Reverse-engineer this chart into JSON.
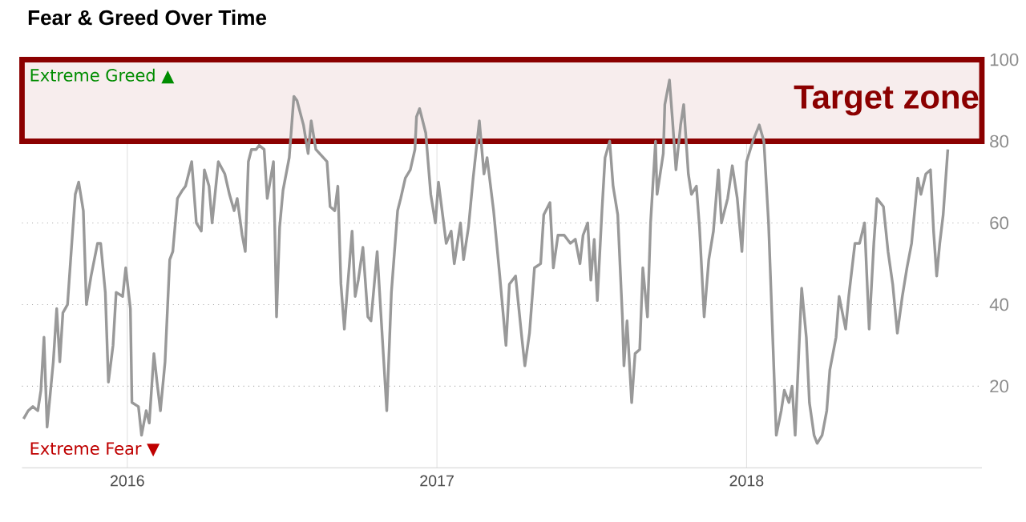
{
  "chart_data": {
    "type": "line",
    "title": "Fear & Greed Over Time",
    "color": "#999999",
    "marker": "none",
    "grid": true,
    "x": [
      2015.665,
      2015.68,
      2015.695,
      2015.711,
      2015.721,
      2015.731,
      2015.741,
      2015.761,
      2015.772,
      2015.782,
      2015.792,
      2015.807,
      2015.817,
      2015.832,
      2015.843,
      2015.858,
      2015.868,
      2015.883,
      2015.904,
      2015.914,
      2015.929,
      2015.939,
      2015.954,
      2015.964,
      2015.985,
      2015.995,
      2016.01,
      2016.015,
      2016.036,
      2016.046,
      2016.061,
      2016.071,
      2016.086,
      2016.096,
      2016.107,
      2016.122,
      2016.137,
      2016.147,
      2016.162,
      2016.178,
      2016.188,
      2016.208,
      2016.223,
      2016.239,
      2016.249,
      2016.264,
      2016.274,
      2016.294,
      2016.315,
      2016.33,
      2016.345,
      2016.355,
      2016.371,
      2016.381,
      2016.391,
      2016.401,
      2016.416,
      2016.426,
      2016.442,
      2016.452,
      2016.472,
      2016.482,
      2016.492,
      2016.503,
      2016.523,
      2016.538,
      2016.548,
      2016.569,
      2016.584,
      2016.594,
      2016.609,
      2016.645,
      2016.655,
      2016.67,
      2016.68,
      2016.69,
      2016.701,
      2016.711,
      2016.726,
      2016.736,
      2016.746,
      2016.761,
      2016.777,
      2016.787,
      2016.807,
      2016.822,
      2016.838,
      2016.853,
      2016.873,
      2016.883,
      2016.898,
      2016.914,
      2016.929,
      2016.934,
      2016.944,
      2016.964,
      2016.98,
      2016.995,
      2017.005,
      2017.03,
      2017.046,
      2017.056,
      2017.076,
      2017.086,
      2017.102,
      2017.117,
      2017.137,
      2017.152,
      2017.162,
      2017.183,
      2017.203,
      2017.223,
      2017.234,
      2017.254,
      2017.274,
      2017.284,
      2017.299,
      2017.315,
      2017.335,
      2017.345,
      2017.365,
      2017.376,
      2017.391,
      2017.411,
      2017.431,
      2017.447,
      2017.462,
      2017.472,
      2017.487,
      2017.497,
      2017.508,
      2017.518,
      2017.533,
      2017.543,
      2017.558,
      2017.569,
      2017.584,
      2017.599,
      2017.604,
      2017.614,
      2017.629,
      2017.64,
      2017.655,
      2017.665,
      2017.68,
      2017.69,
      2017.706,
      2017.711,
      2017.731,
      2017.736,
      2017.751,
      2017.761,
      2017.772,
      2017.787,
      2017.797,
      2017.812,
      2017.822,
      2017.838,
      2017.848,
      2017.863,
      2017.878,
      2017.893,
      2017.909,
      2017.919,
      2017.939,
      2017.954,
      2017.97,
      2017.985,
      2018.0,
      2018.02,
      2018.041,
      2018.056,
      2018.071,
      2018.096,
      2018.112,
      2018.122,
      2018.137,
      2018.147,
      2018.157,
      2018.168,
      2018.178,
      2018.193,
      2018.203,
      2018.218,
      2018.228,
      2018.244,
      2018.259,
      2018.269,
      2018.289,
      2018.299,
      2018.32,
      2018.33,
      2018.35,
      2018.365,
      2018.381,
      2018.396,
      2018.411,
      2018.421,
      2018.442,
      2018.457,
      2018.472,
      2018.487,
      2018.503,
      2018.518,
      2018.533,
      2018.553,
      2018.563,
      2018.579,
      2018.594,
      2018.604,
      2018.614,
      2018.624,
      2018.635,
      2018.65
    ],
    "values": [
      12,
      14,
      15,
      14,
      19,
      32,
      10,
      26,
      39,
      26,
      38,
      40,
      51,
      67,
      70,
      63,
      40,
      47,
      55,
      55,
      43,
      21,
      30,
      43,
      42,
      49,
      39,
      16,
      15,
      8,
      14,
      11,
      28,
      21,
      14,
      26,
      51,
      53,
      66,
      68,
      69,
      75,
      60,
      58,
      73,
      69,
      60,
      75,
      72,
      67,
      63,
      66,
      57,
      53,
      75,
      78,
      78,
      79,
      78,
      66,
      75,
      37,
      59,
      68,
      76,
      91,
      90,
      84,
      77,
      85,
      78,
      75,
      64,
      63,
      69,
      45,
      34,
      44,
      58,
      42,
      46,
      54,
      37,
      36,
      53,
      34,
      14,
      43,
      63,
      66,
      71,
      73,
      78,
      86,
      88,
      82,
      67,
      60,
      70,
      55,
      58,
      50,
      60,
      51,
      59,
      71,
      85,
      72,
      76,
      63,
      47,
      30,
      45,
      47,
      32,
      25,
      33,
      49,
      50,
      62,
      65,
      49,
      57,
      57,
      55,
      56,
      50,
      57,
      60,
      46,
      56,
      41,
      63,
      76,
      80,
      69,
      62,
      37,
      25,
      36,
      16,
      28,
      29,
      49,
      37,
      60,
      80,
      67,
      77,
      89,
      95,
      85,
      73,
      84,
      89,
      72,
      67,
      69,
      59,
      37,
      51,
      58,
      73,
      60,
      66,
      74,
      66,
      53,
      75,
      80,
      84,
      80,
      60,
      8,
      14,
      19,
      16,
      20,
      8,
      27,
      44,
      32,
      16,
      8,
      6,
      8,
      14,
      24,
      32,
      42,
      34,
      42,
      55,
      55,
      60,
      34,
      55,
      66,
      64,
      53,
      45,
      33,
      42,
      49,
      55,
      71,
      67,
      72,
      73,
      58,
      47,
      55,
      62,
      78
    ],
    "xlim": [
      2015.66,
      2018.76
    ],
    "ylim": [
      0,
      100
    ],
    "xticks": [
      2016,
      2017,
      2018
    ],
    "yticks": [
      20,
      40,
      60,
      80,
      100
    ],
    "bands": [
      {
        "axis": "y",
        "from": 80,
        "to": 100,
        "label": "Target zone",
        "color": "#8b0000"
      }
    ],
    "annotations": [
      "Extreme Greed ▲",
      "Extreme Fear ▼"
    ]
  }
}
